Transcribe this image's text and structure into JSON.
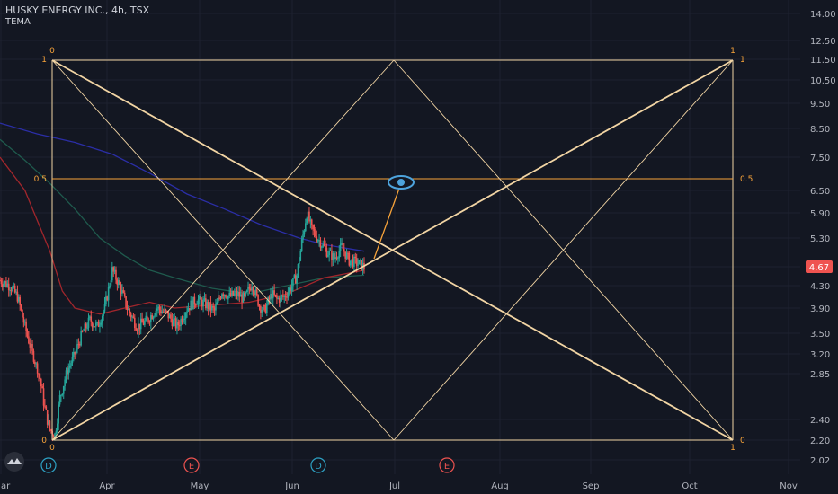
{
  "header": {
    "title": "HUSKY ENERGY INC., 4h, TSX",
    "indicator": "TEMA"
  },
  "colors": {
    "background": "#131722",
    "grid": "#1e2230",
    "axis_text": "#b2b5be",
    "gann": "#f2d5a4",
    "gann_mid": "#f7a33a",
    "gann_label": "#f7a33a",
    "candle_up": "#26a69a",
    "candle_down": "#ef5350",
    "ema_blue": "#2b2ea6",
    "ema_green": "#1f5a4d",
    "ema_red": "#a1262c",
    "price_badge": "#ef5350",
    "eye": "#4da3dc",
    "event_d": "#2ea3c6",
    "event_e": "#ef5350"
  },
  "icons": [
    "eye-icon",
    "tradingview-logo-icon"
  ],
  "chart_data": {
    "type": "candlestick",
    "title": "HUSKY ENERGY INC., 4h, TSX",
    "indicator": "TEMA",
    "x_axis": {
      "labels": [
        "ar",
        "Apr",
        "May",
        "Jun",
        "Jul",
        "Aug",
        "Sep",
        "Oct",
        "Nov"
      ],
      "unit": "date"
    },
    "y_axis": {
      "scale": "log",
      "labels": [
        "14.00",
        "12.50",
        "11.50",
        "10.50",
        "9.50",
        "8.50",
        "7.50",
        "6.50",
        "5.90",
        "5.30",
        "4.67",
        "4.30",
        "3.90",
        "3.50",
        "3.20",
        "2.85",
        "2.40",
        "2.20",
        "2.02"
      ],
      "range": [
        1.95,
        15.0
      ]
    },
    "last_price": "4.67",
    "gann_box": {
      "price_top": 11.5,
      "price_bottom": 2.2,
      "levels": [
        "0",
        "0.5",
        "1"
      ],
      "labels": {
        "top_left_primary": "0",
        "top_left_level": "1",
        "mid_left": "0.5",
        "bottom_left_level": "0",
        "bottom_left_primary": "0",
        "top_right_primary": "1",
        "top_right_level": "1",
        "mid_right": "0.5",
        "bottom_right_level": "0",
        "bottom_right_primary": "1"
      }
    },
    "events": [
      {
        "type": "dividend",
        "label": "D"
      },
      {
        "type": "earnings",
        "label": "E"
      },
      {
        "type": "dividend",
        "label": "D"
      },
      {
        "type": "earnings",
        "label": "E"
      }
    ],
    "price_path": [
      [
        0,
        4.4
      ],
      [
        8,
        4.3
      ],
      [
        14,
        4.1
      ],
      [
        20,
        3.6
      ],
      [
        26,
        3.2
      ],
      [
        32,
        2.8
      ],
      [
        36,
        2.5
      ],
      [
        40,
        2.3
      ],
      [
        44,
        2.25
      ],
      [
        48,
        2.6
      ],
      [
        54,
        2.9
      ],
      [
        60,
        3.2
      ],
      [
        66,
        3.5
      ],
      [
        72,
        3.7
      ],
      [
        78,
        3.6
      ],
      [
        84,
        3.9
      ],
      [
        90,
        4.6
      ],
      [
        96,
        4.3
      ],
      [
        102,
        3.9
      ],
      [
        110,
        3.6
      ],
      [
        118,
        3.7
      ],
      [
        126,
        3.9
      ],
      [
        134,
        3.8
      ],
      [
        142,
        3.6
      ],
      [
        150,
        3.9
      ],
      [
        158,
        4.05
      ],
      [
        166,
        3.95
      ],
      [
        172,
        3.85
      ],
      [
        178,
        4.2
      ],
      [
        184,
        4.1
      ],
      [
        190,
        4.15
      ],
      [
        196,
        4.05
      ],
      [
        202,
        4.35
      ],
      [
        208,
        3.95
      ],
      [
        212,
        3.85
      ],
      [
        218,
        4.15
      ],
      [
        222,
        4.05
      ],
      [
        228,
        4.1
      ],
      [
        234,
        4.3
      ],
      [
        238,
        4.5
      ],
      [
        242,
        5.2
      ],
      [
        246,
        5.9
      ],
      [
        250,
        5.5
      ],
      [
        256,
        5.25
      ],
      [
        262,
        5.0
      ],
      [
        268,
        4.85
      ],
      [
        274,
        5.1
      ],
      [
        280,
        4.8
      ],
      [
        286,
        4.75
      ],
      [
        292,
        4.67
      ]
    ],
    "ema_blue": [
      [
        0,
        8.7
      ],
      [
        30,
        8.3
      ],
      [
        60,
        8.0
      ],
      [
        90,
        7.6
      ],
      [
        120,
        7.0
      ],
      [
        150,
        6.4
      ],
      [
        180,
        6.0
      ],
      [
        210,
        5.6
      ],
      [
        240,
        5.3
      ],
      [
        260,
        5.15
      ],
      [
        292,
        5.0
      ]
    ],
    "ema_green": [
      [
        0,
        8.1
      ],
      [
        20,
        7.4
      ],
      [
        40,
        6.7
      ],
      [
        60,
        6.0
      ],
      [
        80,
        5.3
      ],
      [
        100,
        4.9
      ],
      [
        120,
        4.6
      ],
      [
        140,
        4.45
      ],
      [
        170,
        4.25
      ],
      [
        200,
        4.15
      ],
      [
        230,
        4.3
      ],
      [
        260,
        4.45
      ],
      [
        292,
        4.5
      ]
    ],
    "ema_red": [
      [
        0,
        7.5
      ],
      [
        20,
        6.5
      ],
      [
        40,
        5.0
      ],
      [
        50,
        4.2
      ],
      [
        60,
        3.9
      ],
      [
        80,
        3.8
      ],
      [
        100,
        3.9
      ],
      [
        120,
        4.0
      ],
      [
        140,
        3.9
      ],
      [
        170,
        3.95
      ],
      [
        200,
        4.0
      ],
      [
        230,
        4.15
      ],
      [
        260,
        4.45
      ],
      [
        292,
        4.6
      ]
    ]
  }
}
